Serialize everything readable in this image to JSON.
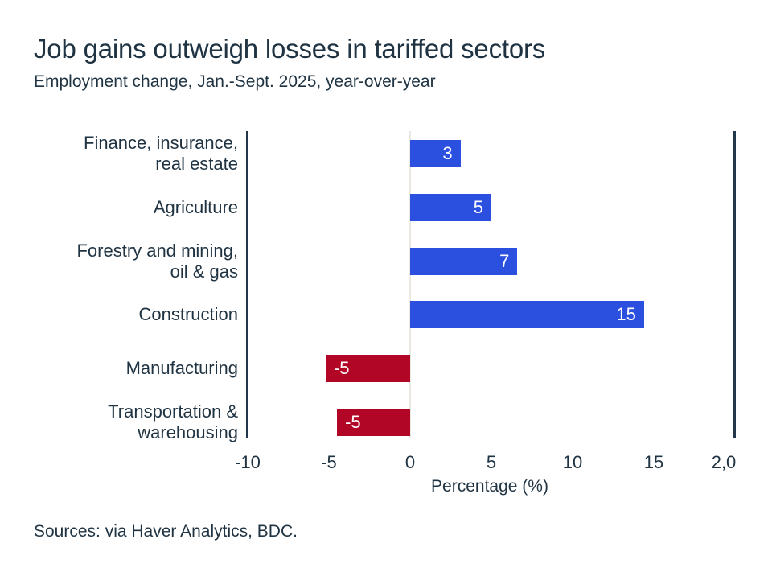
{
  "title": "Job gains outweigh losses in tariffed sectors",
  "subtitle": "Employment change, Jan.-Sept. 2025, year-over-year",
  "source": "Sources: via Haver Analytics, BDC.",
  "colors": {
    "positive": "#2b50e0",
    "negative": "#b20626",
    "text": "#1f3342",
    "axis_line": "#22384a",
    "zero_line": "#ebe8e3",
    "bar_label": "#ffffff"
  },
  "chart_data": {
    "type": "bar",
    "orientation": "horizontal",
    "title": "Job gains outweigh losses in tariffed sectors",
    "subtitle": "Employment change, Jan.-Sept. 2025, year-over-year",
    "xlabel": "Percentage (%)",
    "xlim": [
      -10,
      20
    ],
    "grid": false,
    "legend": false,
    "categories": [
      "Finance, insurance, real estate",
      "Agriculture",
      "Forestry and mining, oil & gas",
      "Construction",
      "Manufacturing",
      "Transportation & warehousing"
    ],
    "values": [
      3,
      5,
      7,
      15,
      -5,
      -5
    ],
    "bars": [
      {
        "category_lines": [
          "Finance, insurance,",
          "real estate"
        ],
        "value": 3,
        "plotted": 3.1,
        "label": "3",
        "color": "positive"
      },
      {
        "category_lines": [
          "Agriculture"
        ],
        "value": 5,
        "plotted": 5.0,
        "label": "5",
        "color": "positive"
      },
      {
        "category_lines": [
          "Forestry and mining,",
          "oil & gas"
        ],
        "value": 7,
        "plotted": 6.6,
        "label": "7",
        "color": "positive"
      },
      {
        "category_lines": [
          "Construction"
        ],
        "value": 15,
        "plotted": 14.4,
        "label": "15",
        "color": "positive"
      },
      {
        "category_lines": [
          "Manufacturing"
        ],
        "value": -5,
        "plotted": -5.2,
        "label": "-5",
        "color": "negative"
      },
      {
        "category_lines": [
          "Transportation &",
          "warehousing"
        ],
        "value": -5,
        "plotted": -4.5,
        "label": "-5",
        "color": "negative"
      }
    ],
    "x_ticks": [
      {
        "label": "-10",
        "value": -10
      },
      {
        "label": "-5",
        "value": -5
      },
      {
        "label": "0",
        "value": 0
      },
      {
        "label": "5",
        "value": 5
      },
      {
        "label": "10",
        "value": 10
      },
      {
        "label": "15",
        "value": 15
      },
      {
        "label": "2,0",
        "value": 20
      }
    ]
  }
}
